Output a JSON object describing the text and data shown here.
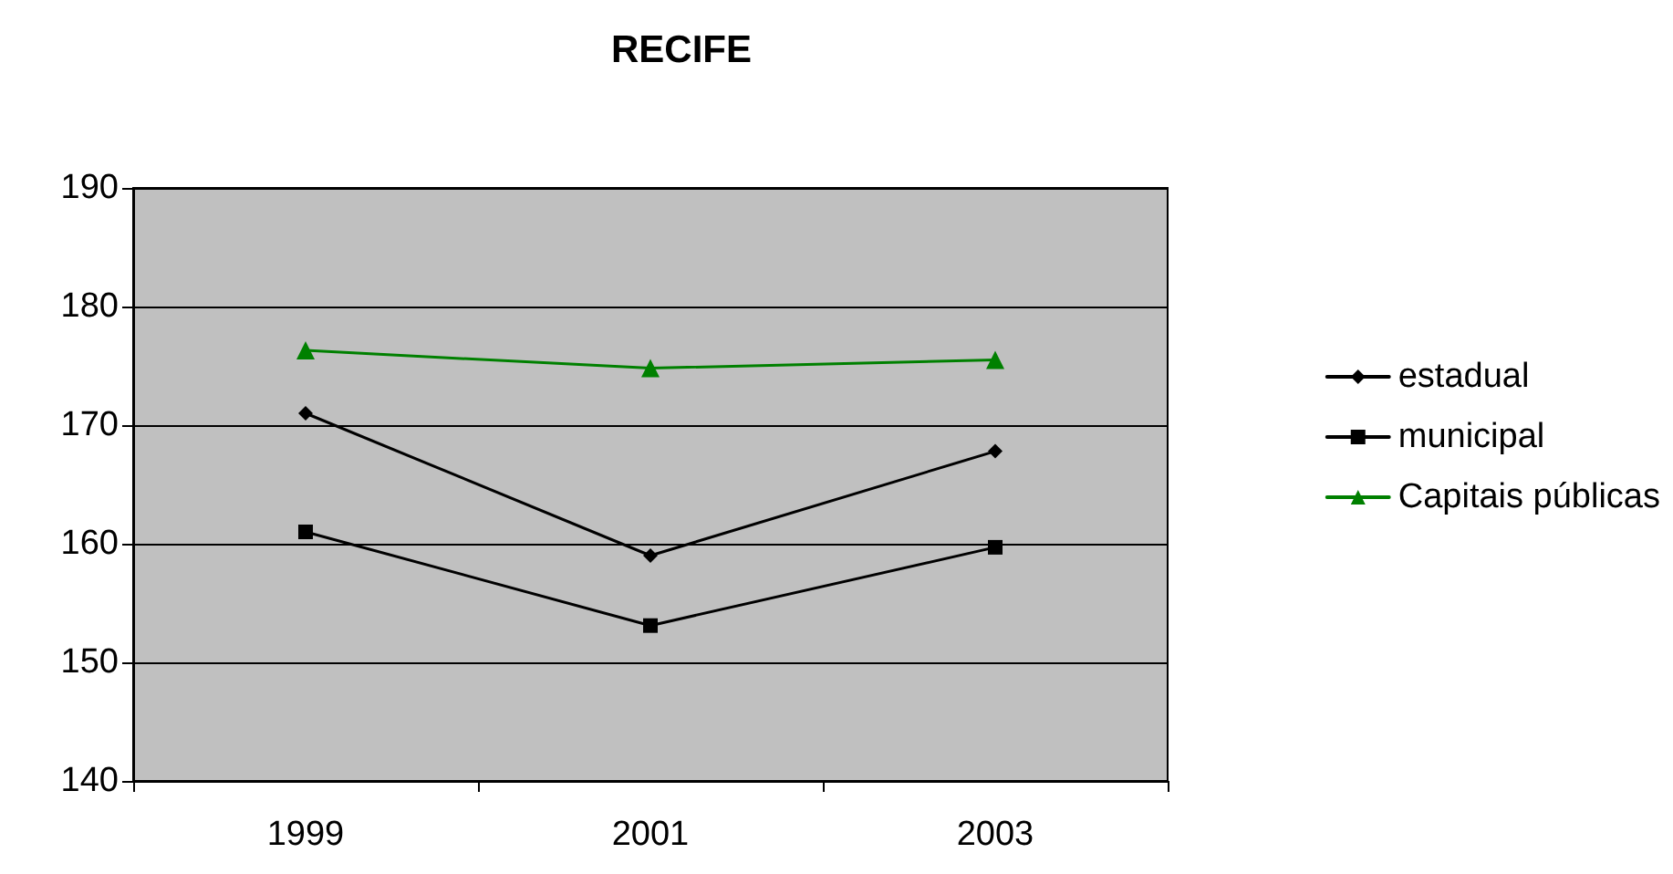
{
  "chart_data": {
    "type": "line",
    "title": "RECIFE",
    "categories": [
      "1999",
      "2001",
      "2003"
    ],
    "series": [
      {
        "name": "estadual",
        "color": "#000000",
        "marker": "diamond",
        "values": [
          171,
          159,
          167.8
        ]
      },
      {
        "name": "municipal",
        "color": "#000000",
        "marker": "square",
        "values": [
          161,
          153.1,
          159.7
        ]
      },
      {
        "name": "Capitais públicas",
        "color": "#008000",
        "marker": "triangle",
        "values": [
          176.3,
          174.8,
          175.5
        ]
      }
    ],
    "ylim": [
      140,
      190
    ],
    "yticks": [
      140,
      150,
      160,
      170,
      180,
      190
    ],
    "grid": "y",
    "legend": "right",
    "line_style": "solid"
  }
}
